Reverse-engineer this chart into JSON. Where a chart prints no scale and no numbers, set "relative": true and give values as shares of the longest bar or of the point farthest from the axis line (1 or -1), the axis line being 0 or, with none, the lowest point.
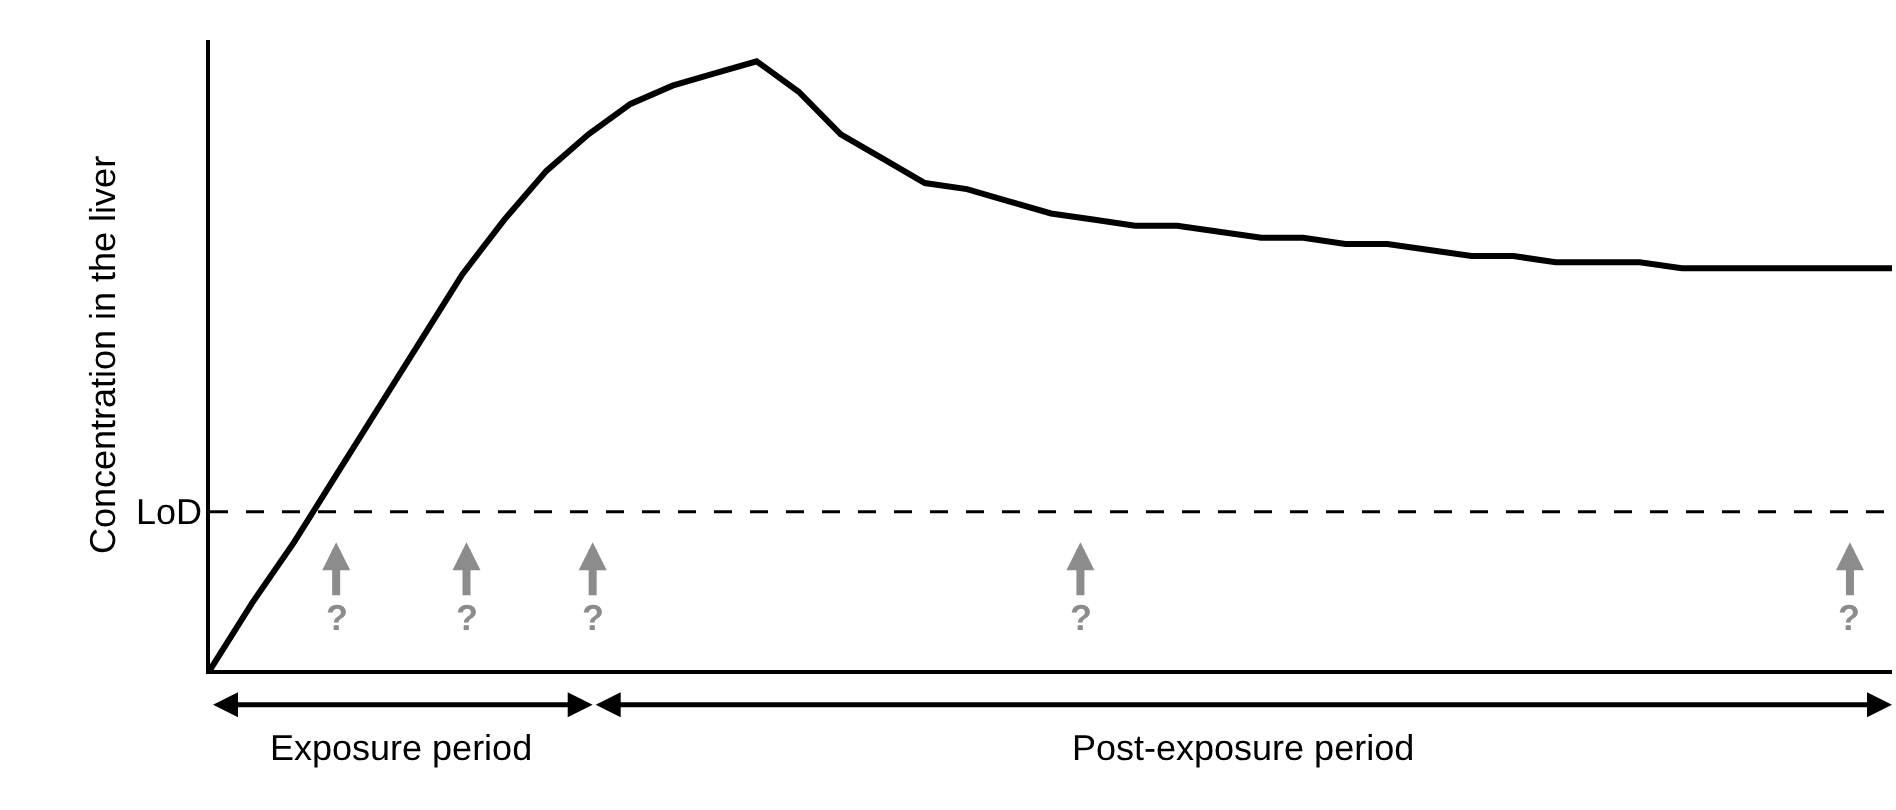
{
  "chart_data": {
    "type": "line",
    "relative": true,
    "ylabel": "Concentration in the liver",
    "categories": [
      null,
      null,
      null,
      null,
      null,
      null,
      null,
      null,
      null,
      null,
      null,
      null,
      null,
      null,
      null,
      null,
      null,
      null,
      null,
      null,
      null,
      null,
      null,
      null,
      null,
      null,
      null,
      null,
      null,
      null,
      null,
      null,
      null,
      null,
      null,
      null,
      null,
      null,
      null,
      null,
      null
    ],
    "series": [
      {
        "color": "#000000",
        "values": [
          0,
          0.11,
          0.21,
          0.32,
          0.43,
          0.54,
          0.65,
          0.74,
          0.82,
          0.88,
          0.93,
          0.96,
          0.98,
          1,
          0.95,
          0.88,
          0.84,
          0.8,
          0.79,
          0.77,
          0.75,
          0.74,
          0.73,
          0.73,
          0.72,
          0.71,
          0.71,
          0.7,
          0.7,
          0.69,
          0.68,
          0.68,
          0.67,
          0.67,
          0.67,
          0.66,
          0.66,
          0.66,
          0.66,
          0.66,
          0.66
        ]
      }
    ],
    "ref_lines": [
      {
        "axis": "y",
        "value": 0.26,
        "label": "LoD",
        "color": "#000000",
        "line_style": "dashed"
      }
    ],
    "annotations": [
      "?",
      "?",
      "?",
      "?",
      "?",
      "Exposure period",
      "Post-exposure period"
    ]
  }
}
